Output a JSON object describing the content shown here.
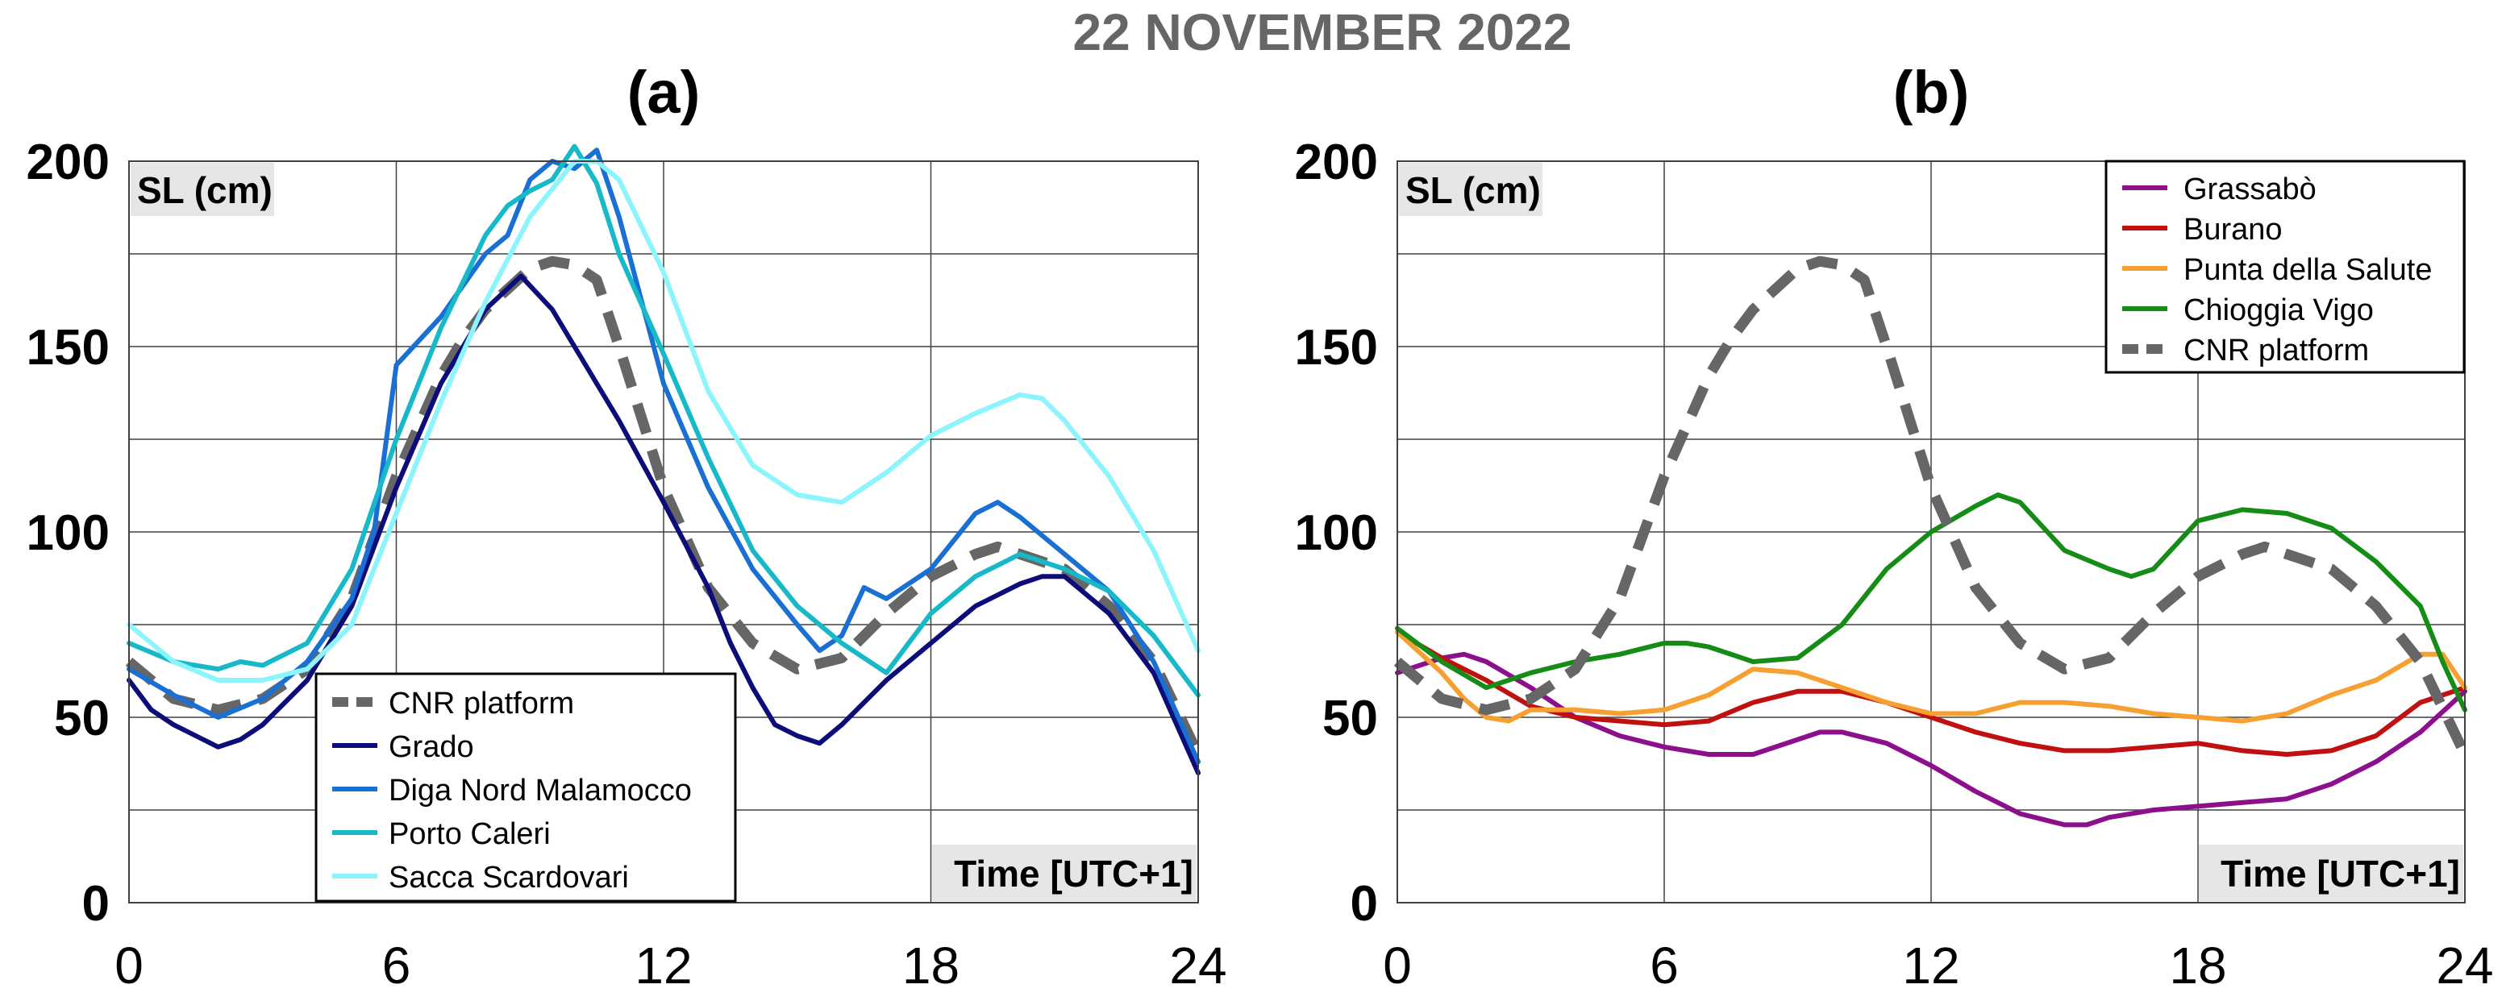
{
  "figure": {
    "title": "22 NOVEMBER 2022"
  },
  "colors": {
    "title": "#666666",
    "axis_label_bg": "#e6e6e6",
    "grid": "#404040"
  },
  "chart_data": [
    {
      "type": "line",
      "panel_label": "(a)",
      "ylabel": "SL (cm)",
      "xlabel": "Time [UTC+1]",
      "xlim": [
        0,
        24
      ],
      "ylim": [
        0,
        200
      ],
      "xticks": [
        0,
        6,
        12,
        18,
        24
      ],
      "yticks": [
        0,
        50,
        100,
        150,
        200
      ],
      "xgrid": [
        0,
        6,
        12,
        18,
        24
      ],
      "ygrid": [
        0,
        25,
        50,
        75,
        100,
        125,
        150,
        175,
        200
      ],
      "grid": true,
      "legend_position": "bottom-left",
      "series": [
        {
          "name": "CNR platform",
          "color": "#666666",
          "style": "dashed",
          "x": [
            0,
            1,
            2,
            3,
            4,
            5,
            6,
            7,
            7.5,
            8,
            9,
            9.5,
            10,
            10.5,
            11,
            12,
            13,
            14,
            15,
            16,
            17,
            18,
            19,
            19.5,
            20,
            21,
            22,
            23,
            24
          ],
          "y": [
            65,
            55,
            52,
            55,
            63,
            82,
            115,
            142,
            152,
            160,
            171,
            173,
            172,
            168,
            150,
            112,
            85,
            70,
            63,
            66,
            78,
            88,
            94,
            96,
            94,
            90,
            80,
            65,
            40
          ]
        },
        {
          "name": "Grado",
          "color": "#0d0d7a",
          "style": "solid",
          "x": [
            0,
            0.5,
            1,
            1.5,
            2,
            2.5,
            3,
            4,
            5,
            6,
            7,
            8,
            8.8,
            9.5,
            10,
            11,
            12,
            13,
            13.5,
            14,
            14.5,
            15,
            15.5,
            16,
            17,
            18,
            19,
            20,
            20.5,
            21,
            22,
            23,
            24
          ],
          "y": [
            60,
            52,
            48,
            45,
            42,
            44,
            48,
            60,
            80,
            112,
            140,
            160,
            169,
            160,
            150,
            130,
            108,
            85,
            70,
            58,
            48,
            45,
            43,
            48,
            60,
            70,
            80,
            86,
            88,
            88,
            78,
            62,
            35
          ]
        },
        {
          "name": "Diga Nord Malamocco",
          "color": "#1a6fd4",
          "style": "solid",
          "x": [
            0,
            1,
            2,
            3,
            4,
            5,
            5.5,
            6,
            7,
            8,
            8.5,
            9,
            9.5,
            10,
            10.5,
            11,
            12,
            13,
            14,
            15,
            15.5,
            16,
            16.5,
            17,
            18,
            19,
            19.5,
            20,
            21,
            22,
            23,
            24
          ],
          "y": [
            63,
            56,
            50,
            55,
            65,
            82,
            100,
            145,
            158,
            175,
            180,
            195,
            200,
            198,
            203,
            185,
            140,
            112,
            90,
            75,
            68,
            72,
            85,
            82,
            90,
            105,
            108,
            104,
            94,
            84,
            65,
            38
          ]
        },
        {
          "name": "Porto Caleri",
          "color": "#17b8c8",
          "style": "solid",
          "x": [
            0,
            1,
            2,
            2.5,
            3,
            4,
            5,
            6,
            7,
            8,
            8.5,
            9,
            9.5,
            10,
            10.5,
            11,
            12,
            13,
            14,
            15,
            16,
            17,
            18,
            19,
            20,
            21,
            22,
            23,
            24
          ],
          "y": [
            70,
            65,
            63,
            65,
            64,
            70,
            90,
            125,
            155,
            180,
            188,
            192,
            195,
            204,
            194,
            175,
            148,
            120,
            95,
            80,
            70,
            62,
            78,
            88,
            94,
            90,
            84,
            72,
            56
          ]
        },
        {
          "name": "Sacca Scardovari",
          "color": "#8cf4fc",
          "style": "solid",
          "x": [
            0,
            1,
            2,
            3,
            4,
            5,
            6,
            7,
            8,
            9,
            10,
            10.5,
            11,
            12,
            13,
            14,
            15,
            16,
            17,
            18,
            19,
            20,
            20.5,
            21,
            22,
            23,
            24
          ],
          "y": [
            75,
            65,
            60,
            60,
            63,
            75,
            105,
            135,
            162,
            185,
            200,
            200,
            195,
            170,
            138,
            118,
            110,
            108,
            116,
            126,
            132,
            137,
            136,
            130,
            115,
            95,
            68
          ]
        }
      ]
    },
    {
      "type": "line",
      "panel_label": "(b)",
      "ylabel": "SL (cm)",
      "xlabel": "Time [UTC+1]",
      "xlim": [
        0,
        24
      ],
      "ylim": [
        0,
        200
      ],
      "xticks": [
        0,
        6,
        12,
        18,
        24
      ],
      "yticks": [
        0,
        50,
        100,
        150,
        200
      ],
      "xgrid": [
        0,
        6,
        12,
        18,
        24
      ],
      "ygrid": [
        0,
        25,
        50,
        75,
        100,
        125,
        150,
        175,
        200
      ],
      "grid": true,
      "legend_position": "top-right",
      "series": [
        {
          "name": "Grassabò",
          "color": "#8c0f8c",
          "style": "solid",
          "x": [
            0,
            1,
            1.5,
            2,
            3,
            4,
            5,
            6,
            7,
            8,
            9,
            9.5,
            10,
            11,
            12,
            13,
            14,
            15,
            15.5,
            16,
            17,
            18,
            19,
            20,
            21,
            22,
            23,
            24
          ],
          "y": [
            62,
            66,
            67,
            65,
            58,
            50,
            45,
            42,
            40,
            40,
            44,
            46,
            46,
            43,
            37,
            30,
            24,
            21,
            21,
            23,
            25,
            26,
            27,
            28,
            32,
            38,
            46,
            57
          ]
        },
        {
          "name": "Burano",
          "color": "#c01010",
          "style": "solid",
          "x": [
            0,
            1,
            2,
            3,
            4,
            5,
            6,
            7,
            8,
            9,
            10,
            11,
            12,
            13,
            14,
            15,
            16,
            17,
            18,
            19,
            20,
            21,
            22,
            23,
            24
          ],
          "y": [
            73,
            66,
            60,
            53,
            50,
            49,
            48,
            49,
            54,
            57,
            57,
            54,
            50,
            46,
            43,
            41,
            41,
            42,
            43,
            41,
            40,
            41,
            45,
            54,
            58
          ]
        },
        {
          "name": "Punta della Salute",
          "color": "#f5a030",
          "style": "solid",
          "x": [
            0,
            1,
            1.5,
            2,
            2.5,
            3,
            4,
            5,
            6,
            7,
            8,
            9,
            10,
            11,
            12,
            13,
            14,
            15,
            16,
            17,
            18,
            19,
            20,
            21,
            22,
            23,
            23.5,
            24
          ],
          "y": [
            73,
            62,
            55,
            50,
            49,
            52,
            52,
            51,
            52,
            56,
            63,
            62,
            58,
            54,
            51,
            51,
            54,
            54,
            53,
            51,
            50,
            49,
            51,
            56,
            60,
            67,
            67,
            58
          ]
        },
        {
          "name": "Chioggia Vigo",
          "color": "#158c15",
          "style": "solid",
          "x": [
            0,
            1,
            2,
            3,
            4,
            5,
            6,
            6.5,
            7,
            8,
            9,
            10,
            11,
            12,
            13,
            13.5,
            14,
            15,
            16,
            16.5,
            17,
            18,
            19,
            20,
            21,
            22,
            23,
            23.5,
            24
          ],
          "y": [
            74,
            65,
            58,
            62,
            65,
            67,
            70,
            70,
            69,
            65,
            66,
            75,
            90,
            100,
            107,
            110,
            108,
            95,
            90,
            88,
            90,
            103,
            106,
            105,
            101,
            92,
            80,
            65,
            52
          ]
        },
        {
          "name": "CNR platform",
          "color": "#666666",
          "style": "dashed",
          "x": [
            0,
            1,
            2,
            3,
            4,
            5,
            6,
            7,
            7.5,
            8,
            9,
            9.5,
            10,
            10.5,
            11,
            12,
            13,
            14,
            15,
            16,
            17,
            18,
            19,
            19.5,
            20,
            21,
            22,
            23,
            24
          ],
          "y": [
            65,
            55,
            52,
            55,
            63,
            82,
            115,
            142,
            152,
            160,
            171,
            173,
            172,
            168,
            150,
            112,
            85,
            70,
            63,
            66,
            78,
            88,
            94,
            96,
            94,
            90,
            80,
            65,
            40
          ]
        }
      ]
    }
  ]
}
